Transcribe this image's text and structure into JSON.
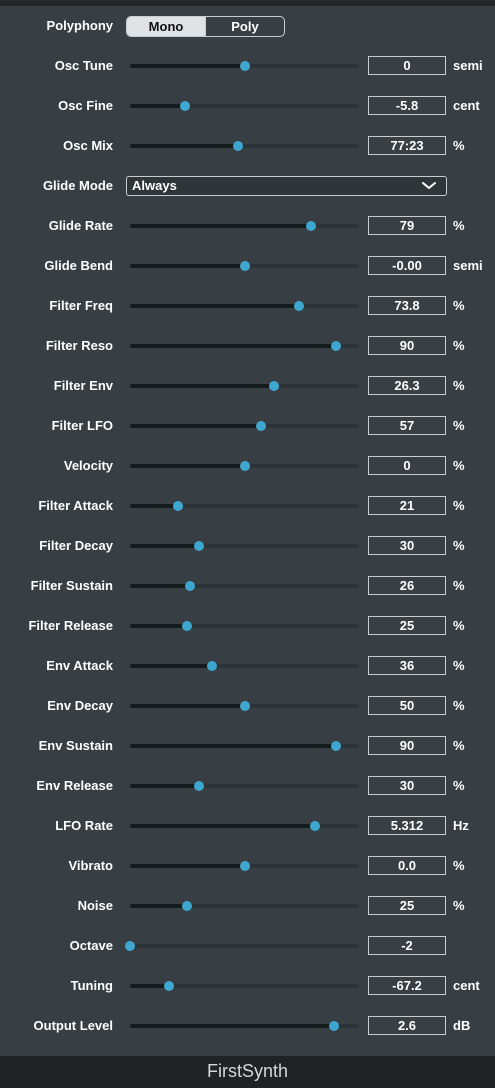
{
  "polyphony": {
    "label": "Polyphony",
    "options": [
      "Mono",
      "Poly"
    ],
    "selected": "Mono"
  },
  "glide_mode": {
    "label": "Glide Mode",
    "value": "Always"
  },
  "params": [
    {
      "label": "Osc Tune",
      "value": "0",
      "unit": "semi",
      "level": 0.5
    },
    {
      "label": "Osc Fine",
      "value": "-5.8",
      "unit": "cent",
      "level": 0.24
    },
    {
      "label": "Osc Mix",
      "value": "77:23",
      "unit": "%",
      "level": 0.47
    },
    {
      "label": "Glide Rate",
      "value": "79",
      "unit": "%",
      "level": 0.79
    },
    {
      "label": "Glide Bend",
      "value": "-0.00",
      "unit": "semi",
      "level": 0.5
    },
    {
      "label": "Filter Freq",
      "value": "73.8",
      "unit": "%",
      "level": 0.738
    },
    {
      "label": "Filter Reso",
      "value": "90",
      "unit": "%",
      "level": 0.9
    },
    {
      "label": "Filter Env",
      "value": "26.3",
      "unit": "%",
      "level": 0.63
    },
    {
      "label": "Filter LFO",
      "value": "57",
      "unit": "%",
      "level": 0.57
    },
    {
      "label": "Velocity",
      "value": "0",
      "unit": "%",
      "level": 0.5
    },
    {
      "label": "Filter Attack",
      "value": "21",
      "unit": "%",
      "level": 0.21
    },
    {
      "label": "Filter Decay",
      "value": "30",
      "unit": "%",
      "level": 0.3
    },
    {
      "label": "Filter Sustain",
      "value": "26",
      "unit": "%",
      "level": 0.26
    },
    {
      "label": "Filter Release",
      "value": "25",
      "unit": "%",
      "level": 0.25
    },
    {
      "label": "Env Attack",
      "value": "36",
      "unit": "%",
      "level": 0.36
    },
    {
      "label": "Env Decay",
      "value": "50",
      "unit": "%",
      "level": 0.5
    },
    {
      "label": "Env Sustain",
      "value": "90",
      "unit": "%",
      "level": 0.9
    },
    {
      "label": "Env Release",
      "value": "30",
      "unit": "%",
      "level": 0.3
    },
    {
      "label": "LFO Rate",
      "value": "5.312",
      "unit": "Hz",
      "level": 0.81
    },
    {
      "label": "Vibrato",
      "value": "0.0",
      "unit": "%",
      "level": 0.5
    },
    {
      "label": "Noise",
      "value": "25",
      "unit": "%",
      "level": 0.25
    },
    {
      "label": "Octave",
      "value": "-2",
      "unit": "",
      "level": 0.0
    },
    {
      "label": "Tuning",
      "value": "-67.2",
      "unit": "cent",
      "level": 0.17
    },
    {
      "label": "Output Level",
      "value": "2.6",
      "unit": "dB",
      "level": 0.89
    }
  ],
  "footer": {
    "title": "FirstSynth"
  },
  "colors": {
    "panel": "#373f44",
    "thumb": "#3fa6cf",
    "track": "#2d3438",
    "fill": "#151a1d"
  }
}
